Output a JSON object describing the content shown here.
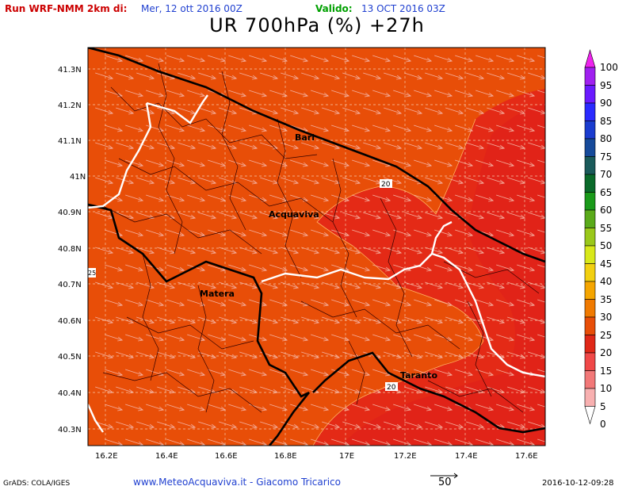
{
  "header": {
    "run_label": "Run WRF-NMM 2km di:",
    "run_date": "Mer, 12 ott 2016 00Z",
    "valid_label": "Valido:",
    "valid_date": "13 OCT 2016 03Z"
  },
  "title": "UR 700hPa (%) +27h",
  "axes": {
    "y_labels": [
      "41.3N",
      "41.2N",
      "41.1N",
      "41N",
      "40.9N",
      "40.8N",
      "40.7N",
      "40.6N",
      "40.5N",
      "40.4N",
      "40.3N"
    ],
    "x_labels": [
      "16.2E",
      "16.4E",
      "16.6E",
      "16.8E",
      "17E",
      "17.2E",
      "17.4E",
      "17.6E"
    ]
  },
  "cities": [
    {
      "name": "Bari",
      "lon": 16.87,
      "lat": 41.12
    },
    {
      "name": "Acquaviva",
      "lon": 16.84,
      "lat": 40.9
    },
    {
      "name": "Matera",
      "lon": 16.6,
      "lat": 40.67
    },
    {
      "name": "Taranto",
      "lon": 17.24,
      "lat": 40.47
    }
  ],
  "contour_labels": [
    "20",
    "20",
    "25"
  ],
  "colorbar": {
    "labels": [
      "100",
      "95",
      "90",
      "85",
      "80",
      "75",
      "70",
      "65",
      "60",
      "55",
      "50",
      "45",
      "40",
      "35",
      "30",
      "25",
      "20",
      "15",
      "10",
      "5",
      "0"
    ],
    "colors": [
      "#ee22ee",
      "#a020f0",
      "#6a1aff",
      "#2a2aff",
      "#1a3ccf",
      "#164a9a",
      "#1a5a5a",
      "#0a6a2a",
      "#1a9a1a",
      "#5aaa1a",
      "#9ac81a",
      "#d8e81a",
      "#f2d010",
      "#f5a500",
      "#f07a00",
      "#e84e08",
      "#e02818",
      "#f04848",
      "#f27878",
      "#f8b0b0"
    ]
  },
  "footer": {
    "left": "GrADS: COLA/IGES",
    "middle": "www.MeteoAcquaviva.it  -  Giacomo Tricarico",
    "vector_ref": "50",
    "right": "2016-10-12-09:28"
  }
}
